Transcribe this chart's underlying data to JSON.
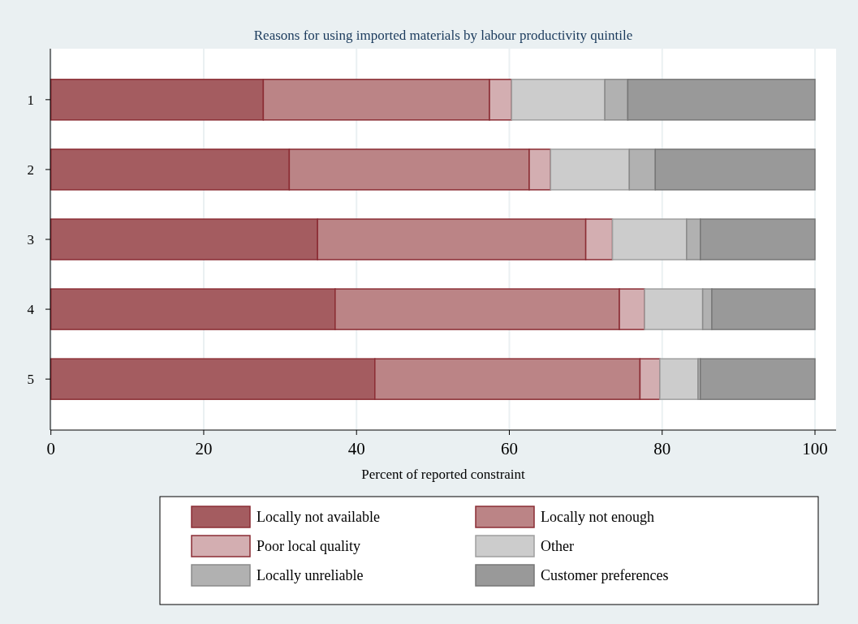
{
  "chart_data": {
    "type": "bar",
    "title": "Reasons for using imported materials by labour productivity quintile",
    "xlabel": "Percent of reported constraint",
    "orientation": "horizontal",
    "stacked": true,
    "categories": [
      "1",
      "2",
      "3",
      "4",
      "5"
    ],
    "series": [
      {
        "name": "Locally not available",
        "color": "#a45c60",
        "values": [
          27.8,
          31.2,
          34.9,
          37.2,
          42.4
        ]
      },
      {
        "name": "Locally not enough",
        "color": "#bb8486",
        "values": [
          29.6,
          31.4,
          35.1,
          37.2,
          34.7
        ]
      },
      {
        "name": "Poor local quality",
        "color": "#d3aeb1",
        "values": [
          2.9,
          2.8,
          3.5,
          3.3,
          2.6
        ]
      },
      {
        "name": "Other",
        "color": "#cccccc",
        "values": [
          12.2,
          10.3,
          9.7,
          7.6,
          5.0
        ]
      },
      {
        "name": "Locally unreliable",
        "color": "#b1b1b1",
        "values": [
          3.0,
          3.4,
          1.8,
          1.2,
          0.3
        ]
      },
      {
        "name": "Customer preferences",
        "color": "#999999",
        "values": [
          24.5,
          20.9,
          15.0,
          13.5,
          15.0
        ]
      }
    ],
    "xlim": [
      0,
      100
    ],
    "xticks": [
      0,
      20,
      40,
      60,
      80,
      100
    ],
    "grid": "x",
    "legend": "bottom"
  }
}
